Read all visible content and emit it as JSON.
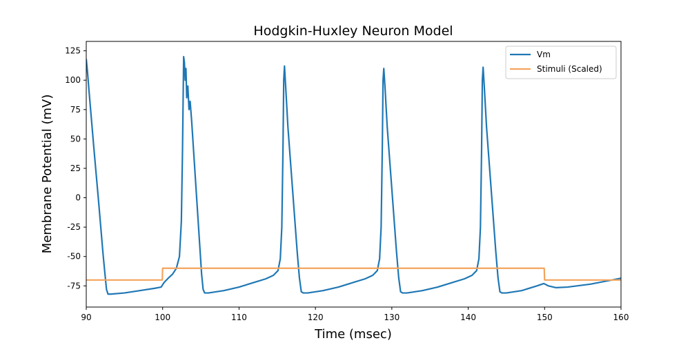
{
  "chart_data": {
    "type": "line",
    "title": "Hodgkin-Huxley Neuron Model",
    "xlabel": "Time (msec)",
    "ylabel": "Membrane Potential (mV)",
    "xlim": [
      90,
      160
    ],
    "ylim": [
      -93,
      133
    ],
    "xticks": [
      90,
      100,
      110,
      120,
      130,
      140,
      150,
      160
    ],
    "yticks": [
      -75,
      -50,
      -25,
      0,
      25,
      50,
      75,
      100,
      125
    ],
    "grid": false,
    "legend_position": "top-right",
    "series": [
      {
        "name": "Vm",
        "color": "#1f77b4",
        "points": [
          [
            90.0,
            118
          ],
          [
            90.15,
            108
          ],
          [
            90.4,
            88
          ],
          [
            90.7,
            65
          ],
          [
            91.0,
            42
          ],
          [
            91.3,
            20
          ],
          [
            91.6,
            -2
          ],
          [
            91.9,
            -25
          ],
          [
            92.2,
            -48
          ],
          [
            92.45,
            -65
          ],
          [
            92.65,
            -78
          ],
          [
            92.85,
            -82
          ],
          [
            93.2,
            -82
          ],
          [
            95.0,
            -81
          ],
          [
            97.0,
            -79
          ],
          [
            99.0,
            -77
          ],
          [
            99.8,
            -76
          ],
          [
            100.2,
            -72
          ],
          [
            100.8,
            -68
          ],
          [
            101.3,
            -65
          ],
          [
            101.8,
            -60
          ],
          [
            102.2,
            -50
          ],
          [
            102.45,
            -20
          ],
          [
            102.6,
            40
          ],
          [
            102.75,
            120
          ],
          [
            102.85,
            115
          ],
          [
            102.95,
            100
          ],
          [
            103.05,
            110
          ],
          [
            103.15,
            85
          ],
          [
            103.3,
            95
          ],
          [
            103.45,
            75
          ],
          [
            103.6,
            82
          ],
          [
            103.8,
            65
          ],
          [
            104.0,
            45
          ],
          [
            104.3,
            15
          ],
          [
            104.6,
            -15
          ],
          [
            104.9,
            -45
          ],
          [
            105.1,
            -65
          ],
          [
            105.3,
            -78
          ],
          [
            105.5,
            -81
          ],
          [
            106.0,
            -81
          ],
          [
            108.0,
            -79
          ],
          [
            110.0,
            -76
          ],
          [
            112.0,
            -72
          ],
          [
            113.5,
            -69
          ],
          [
            114.5,
            -66
          ],
          [
            115.1,
            -62
          ],
          [
            115.4,
            -52
          ],
          [
            115.6,
            -25
          ],
          [
            115.75,
            40
          ],
          [
            115.85,
            100
          ],
          [
            115.95,
            112
          ],
          [
            116.1,
            95
          ],
          [
            116.4,
            60
          ],
          [
            116.8,
            25
          ],
          [
            117.2,
            -10
          ],
          [
            117.6,
            -45
          ],
          [
            117.9,
            -68
          ],
          [
            118.15,
            -80
          ],
          [
            118.4,
            -81
          ],
          [
            119.0,
            -81
          ],
          [
            121.0,
            -79
          ],
          [
            123.0,
            -76
          ],
          [
            125.0,
            -72
          ],
          [
            126.5,
            -69
          ],
          [
            127.5,
            -66
          ],
          [
            128.1,
            -62
          ],
          [
            128.4,
            -52
          ],
          [
            128.6,
            -25
          ],
          [
            128.75,
            40
          ],
          [
            128.85,
            100
          ],
          [
            128.95,
            110
          ],
          [
            129.1,
            95
          ],
          [
            129.4,
            60
          ],
          [
            129.8,
            25
          ],
          [
            130.2,
            -10
          ],
          [
            130.6,
            -45
          ],
          [
            130.9,
            -68
          ],
          [
            131.15,
            -80
          ],
          [
            131.4,
            -81
          ],
          [
            132.0,
            -81
          ],
          [
            134.0,
            -79
          ],
          [
            136.0,
            -76
          ],
          [
            138.0,
            -72
          ],
          [
            139.5,
            -69
          ],
          [
            140.5,
            -66
          ],
          [
            141.1,
            -62
          ],
          [
            141.4,
            -52
          ],
          [
            141.6,
            -25
          ],
          [
            141.75,
            40
          ],
          [
            141.85,
            100
          ],
          [
            141.95,
            111
          ],
          [
            142.1,
            95
          ],
          [
            142.4,
            60
          ],
          [
            142.8,
            25
          ],
          [
            143.2,
            -10
          ],
          [
            143.6,
            -45
          ],
          [
            143.9,
            -68
          ],
          [
            144.15,
            -80
          ],
          [
            144.4,
            -81
          ],
          [
            145.0,
            -81
          ],
          [
            147.0,
            -79
          ],
          [
            149.0,
            -75
          ],
          [
            149.9,
            -73
          ],
          [
            150.5,
            -75
          ],
          [
            151.5,
            -76.5
          ],
          [
            153.0,
            -76
          ],
          [
            156.0,
            -73.5
          ],
          [
            160.0,
            -68.5
          ]
        ]
      },
      {
        "name": "Stimuli (Scaled)",
        "color": "#f4a45c",
        "points": [
          [
            90,
            -70
          ],
          [
            99.95,
            -70
          ],
          [
            100.0,
            -60
          ],
          [
            149.95,
            -60
          ],
          [
            150.0,
            -70
          ],
          [
            160,
            -70
          ]
        ]
      }
    ]
  }
}
